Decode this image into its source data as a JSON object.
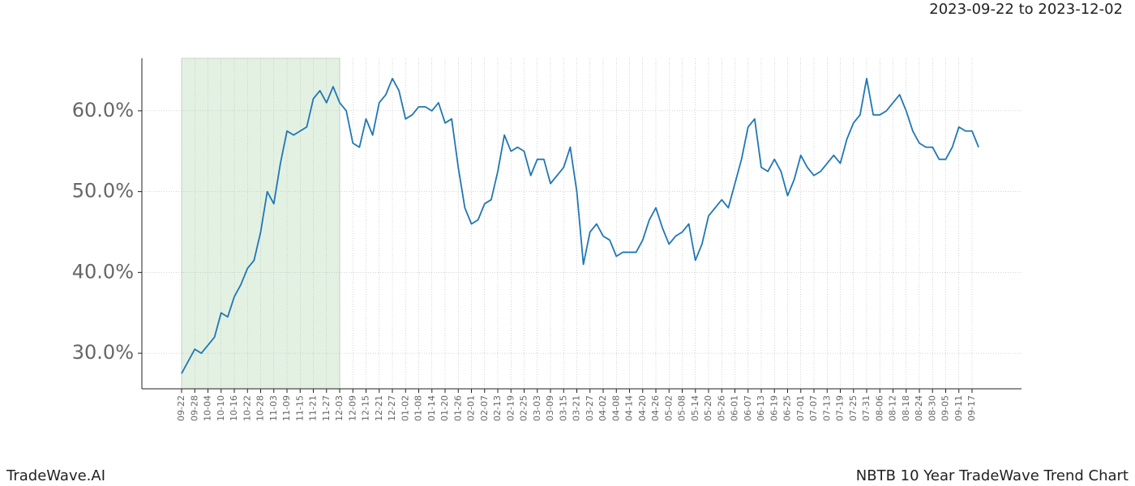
{
  "chart_data": {
    "type": "line",
    "subtitle": "2023-09-22 to 2023-12-02",
    "footer_left": "TradeWave.AI",
    "footer_right": "NBTB 10 Year TradeWave Trend Chart",
    "categories": [
      "09-22",
      null,
      "09-28",
      null,
      "10-04",
      null,
      "10-10",
      null,
      "10-16",
      null,
      "10-22",
      null,
      "10-28",
      null,
      "11-03",
      null,
      "11-09",
      null,
      "11-15",
      null,
      "11-21",
      null,
      "11-27",
      null,
      "12-03",
      null,
      "12-09",
      null,
      "12-15",
      null,
      "12-21",
      null,
      "12-27",
      null,
      "01-02",
      null,
      "01-08",
      null,
      "01-14",
      null,
      "01-20",
      null,
      "01-26",
      null,
      "02-01",
      null,
      "02-07",
      null,
      "02-13",
      null,
      "02-19",
      null,
      "02-25",
      null,
      "03-03",
      null,
      "03-09",
      null,
      "03-15",
      null,
      "03-21",
      null,
      "03-27",
      null,
      "04-02",
      null,
      "04-08",
      null,
      "04-14",
      null,
      "04-20",
      null,
      "04-26",
      null,
      "05-02",
      null,
      "05-08",
      null,
      "05-14",
      null,
      "05-20",
      null,
      "05-26",
      null,
      "06-01",
      null,
      "06-07",
      null,
      "06-13",
      null,
      "06-19",
      null,
      "06-25",
      null,
      "07-01",
      null,
      "07-07",
      null,
      "07-13",
      null,
      "07-19",
      null,
      "07-25",
      null,
      "07-31",
      null,
      "08-06",
      null,
      "08-12",
      null,
      "08-18",
      null,
      "08-24",
      null,
      "08-30",
      null,
      "09-05",
      null,
      "09-11",
      null,
      "09-17",
      null
    ],
    "values": [
      27.5,
      29,
      30.5,
      30,
      31,
      32,
      35,
      34.5,
      37,
      38.5,
      40.5,
      41.5,
      45,
      50,
      48.5,
      53.5,
      57.5,
      57,
      57.5,
      58,
      61.5,
      62.5,
      61,
      63,
      61,
      60,
      56,
      55.5,
      59,
      57,
      61,
      62,
      64,
      62.5,
      59,
      59.5,
      60.5,
      60.5,
      60,
      61,
      58.5,
      59,
      53,
      48,
      46,
      46.5,
      48.5,
      49,
      52.5,
      57,
      55,
      55.5,
      55,
      52,
      54,
      54,
      51,
      52,
      53,
      55.5,
      50,
      41,
      45,
      46,
      44.5,
      44,
      42,
      42.5,
      42.5,
      42.5,
      44,
      46.5,
      48,
      45.5,
      43.5,
      44.5,
      45,
      46,
      41.5,
      43.5,
      47,
      48,
      49,
      48,
      51,
      54,
      58,
      59,
      53,
      52.5,
      54,
      52.5,
      49.5,
      51.5,
      54.5,
      53,
      52,
      52.5,
      53.5,
      54.5,
      53.5,
      56.5,
      58.5,
      59.5,
      64,
      59.5,
      59.5,
      60,
      61,
      62,
      60,
      57.5,
      56,
      55.5,
      55.5,
      54,
      54,
      55.5,
      58,
      57.5,
      57.5,
      55.5
    ],
    "color": "#1f77b4",
    "highlight_range": [
      0,
      24
    ],
    "highlight_color": "#e3f1e3",
    "ylim": [
      25.6,
      66.5
    ],
    "yticks": [
      {
        "value": 30,
        "label": "30.0%"
      },
      {
        "value": 40,
        "label": "40.0%"
      },
      {
        "value": 50,
        "label": "50.0%"
      },
      {
        "value": 60,
        "label": "60.0%"
      }
    ],
    "grid": true
  }
}
